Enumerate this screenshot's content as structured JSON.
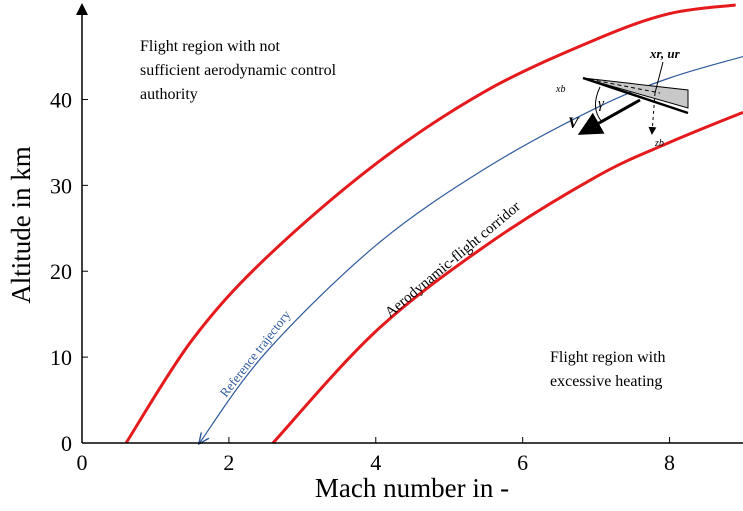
{
  "chart_data": {
    "type": "line",
    "x_label": "Mach number in -",
    "y_label": "Altitude in km",
    "xlim": [
      0,
      9
    ],
    "ylim": [
      0,
      51
    ],
    "xticks": [
      0,
      2,
      4,
      6,
      8
    ],
    "yticks": [
      0,
      10,
      20,
      30,
      40
    ],
    "series": [
      {
        "color": "#e41a1c",
        "x": [
          0.6,
          1.5,
          2.5,
          4,
          5.5,
          7,
          8,
          8.9
        ],
        "values": [
          0,
          12,
          21.5,
          32.5,
          41,
          47,
          50,
          51
        ]
      },
      {
        "color": "#2e5a9c",
        "x": [
          1.6,
          2.5,
          4,
          5.5,
          7,
          8,
          9
        ],
        "values": [
          0,
          10.5,
          23,
          32,
          39,
          42.5,
          45
        ]
      },
      {
        "color": "#e41a1c",
        "x": [
          2.6,
          4,
          5.5,
          7,
          8,
          9
        ],
        "values": [
          0,
          13,
          23,
          31,
          35,
          38.5
        ]
      }
    ],
    "annotations": [
      {
        "lines": [
          "Flight region with not",
          "sufficient aerodynamic control",
          "authority"
        ]
      },
      {
        "lines": [
          "Flight region with",
          "excessive heating"
        ]
      },
      {
        "text": "Reference trajectory"
      },
      {
        "text": "Aerodynamic-flight corridor"
      },
      {
        "text": "xr, ur"
      },
      {
        "text": "xb"
      },
      {
        "text": "zb"
      },
      {
        "text": "γ"
      },
      {
        "text": "V"
      }
    ]
  }
}
